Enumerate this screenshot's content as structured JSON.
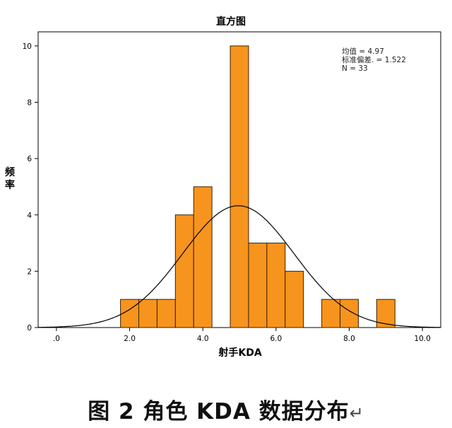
{
  "caption": {
    "text": "图 2 角色 KDA 数据分布",
    "return_mark": "↵"
  },
  "colors": {
    "bar_fill": "#f7941d",
    "bar_stroke": "#3a2200",
    "curve": "#000000",
    "axis": "#000000"
  },
  "chart_data": {
    "type": "bar",
    "title": "直方图",
    "xlabel": "射手KDA",
    "ylabel": "频率",
    "xlim": [
      -0.5,
      10.5
    ],
    "ylim": [
      0,
      10.5
    ],
    "x_ticks": [
      {
        "value": 0,
        "label": ".0"
      },
      {
        "value": 2,
        "label": "2.0"
      },
      {
        "value": 4,
        "label": "4.0"
      },
      {
        "value": 6,
        "label": "6.0"
      },
      {
        "value": 8,
        "label": "8.0"
      },
      {
        "value": 10,
        "label": "10.0"
      }
    ],
    "y_ticks": [
      0,
      2,
      4,
      6,
      8,
      10
    ],
    "bins": [
      {
        "start": 1.75,
        "end": 2.25,
        "count": 1
      },
      {
        "start": 2.25,
        "end": 2.75,
        "count": 1
      },
      {
        "start": 2.75,
        "end": 3.25,
        "count": 1
      },
      {
        "start": 3.25,
        "end": 3.75,
        "count": 4
      },
      {
        "start": 3.75,
        "end": 4.25,
        "count": 5
      },
      {
        "start": 4.75,
        "end": 5.25,
        "count": 10
      },
      {
        "start": 5.25,
        "end": 5.75,
        "count": 3
      },
      {
        "start": 5.75,
        "end": 6.25,
        "count": 3
      },
      {
        "start": 6.25,
        "end": 6.75,
        "count": 2
      },
      {
        "start": 7.25,
        "end": 7.75,
        "count": 1
      },
      {
        "start": 7.75,
        "end": 8.25,
        "count": 1
      },
      {
        "start": 8.75,
        "end": 9.25,
        "count": 1
      }
    ],
    "normal_curve": {
      "mean": 4.97,
      "sd": 1.522,
      "n": 33,
      "bin_width": 0.5
    },
    "stats": {
      "mean_label": "均值 = 4.97",
      "sd_label": "标准偏差. = 1.522",
      "n_label": "N = 33"
    }
  }
}
